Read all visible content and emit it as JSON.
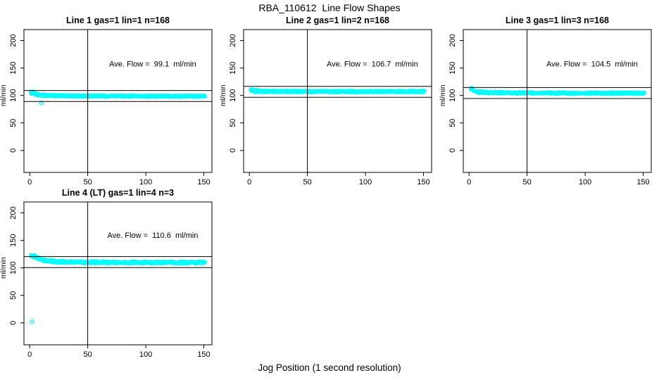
{
  "figure": {
    "title": "RBA_110612  Line Flow Shapes",
    "xlabel": "Jog Position (1 second resolution)",
    "background": "#FFFFFF",
    "marker_color": "#00FFFF",
    "axis_color": "#000000"
  },
  "chart_data": [
    {
      "type": "scatter",
      "panel": 1,
      "title": "Line 1 gas=1 lin=1 n=168",
      "ylabel": "ml/min",
      "n": 168,
      "ave_flow": 99.1,
      "annotation": "Ave. Flow =  99.1  ml/min",
      "annotation_xy": [
        106,
        153
      ],
      "xlim": [
        -5,
        157
      ],
      "ylim": [
        -40,
        220
      ],
      "xticks": [
        0,
        50,
        100,
        150
      ],
      "yticks": [
        0,
        50,
        100,
        150,
        200
      ],
      "vline_x": 50,
      "hlines": [
        109.1,
        89.1
      ],
      "x_range": [
        0.8,
        151
      ],
      "band_halfwidth": 1.5,
      "band_keypoints": [
        [
          1,
          104.5
        ],
        [
          2,
          106
        ],
        [
          3,
          105
        ],
        [
          5,
          103
        ],
        [
          8,
          101.5
        ],
        [
          12,
          100.5
        ],
        [
          20,
          99.5
        ],
        [
          40,
          99
        ],
        [
          70,
          99
        ],
        [
          100,
          98.8
        ],
        [
          130,
          98.6
        ],
        [
          150,
          98.5
        ]
      ],
      "outliers": [
        [
          10,
          86.5
        ]
      ]
    },
    {
      "type": "scatter",
      "panel": 2,
      "title": "Line 2 gas=1 lin=2 n=168",
      "ylabel": "ml/min",
      "n": 168,
      "ave_flow": 106.7,
      "annotation": "Ave. Flow =  106.7  ml/min",
      "annotation_xy": [
        106,
        153
      ],
      "xlim": [
        -5,
        157
      ],
      "ylim": [
        -40,
        220
      ],
      "xticks": [
        0,
        50,
        100,
        150
      ],
      "yticks": [
        0,
        50,
        100,
        150,
        200
      ],
      "vline_x": 50,
      "hlines": [
        116.7,
        96.7
      ],
      "x_range": [
        0.8,
        151
      ],
      "band_halfwidth": 1.5,
      "band_keypoints": [
        [
          1,
          110
        ],
        [
          2,
          109.5
        ],
        [
          4,
          108.5
        ],
        [
          8,
          108
        ],
        [
          15,
          107.5
        ],
        [
          40,
          107.3
        ],
        [
          80,
          107.2
        ],
        [
          150,
          107.2
        ]
      ],
      "outliers": []
    },
    {
      "type": "scatter",
      "panel": 3,
      "title": "Line 3 gas=1 lin=3 n=168",
      "ylabel": "ml/min",
      "n": 168,
      "ave_flow": 104.5,
      "annotation": "Ave. Flow =  104.5  ml/min",
      "annotation_xy": [
        106,
        153
      ],
      "xlim": [
        -5,
        157
      ],
      "ylim": [
        -40,
        220
      ],
      "xticks": [
        0,
        50,
        100,
        150
      ],
      "yticks": [
        0,
        50,
        100,
        150,
        200
      ],
      "vline_x": 50,
      "hlines": [
        114.5,
        94.5
      ],
      "x_range": [
        1.5,
        151
      ],
      "band_halfwidth": 1.6,
      "band_keypoints": [
        [
          2,
          112.5
        ],
        [
          3,
          110
        ],
        [
          5,
          108
        ],
        [
          8,
          106.5
        ],
        [
          15,
          105.5
        ],
        [
          30,
          105
        ],
        [
          60,
          104.5
        ],
        [
          100,
          104.3
        ],
        [
          150,
          104.3
        ]
      ],
      "outliers": []
    },
    {
      "type": "scatter",
      "panel": 4,
      "title": "Line 4 (LT) gas=1 lin=4 n=3",
      "ylabel": "ml/min",
      "n": 3,
      "ave_flow": 110.6,
      "annotation": "Ave. Flow =  110.6  ml/min",
      "annotation_xy": [
        106,
        155
      ],
      "xlim": [
        -5,
        157
      ],
      "ylim": [
        -40,
        220
      ],
      "xticks": [
        0,
        50,
        100,
        150
      ],
      "yticks": [
        0,
        50,
        100,
        150,
        200
      ],
      "vline_x": 50,
      "hlines": [
        120.6,
        100.6
      ],
      "x_range": [
        0.8,
        151
      ],
      "band_halfwidth": 2.0,
      "band_keypoints": [
        [
          1,
          121.5
        ],
        [
          2,
          122.5
        ],
        [
          4,
          120
        ],
        [
          7,
          117
        ],
        [
          12,
          114
        ],
        [
          20,
          112
        ],
        [
          30,
          111
        ],
        [
          45,
          110.5
        ],
        [
          70,
          110.2
        ],
        [
          100,
          110
        ],
        [
          125,
          109.6
        ],
        [
          140,
          109.8
        ],
        [
          150,
          110.2
        ]
      ],
      "outliers": [
        [
          2,
          2
        ]
      ]
    }
  ]
}
